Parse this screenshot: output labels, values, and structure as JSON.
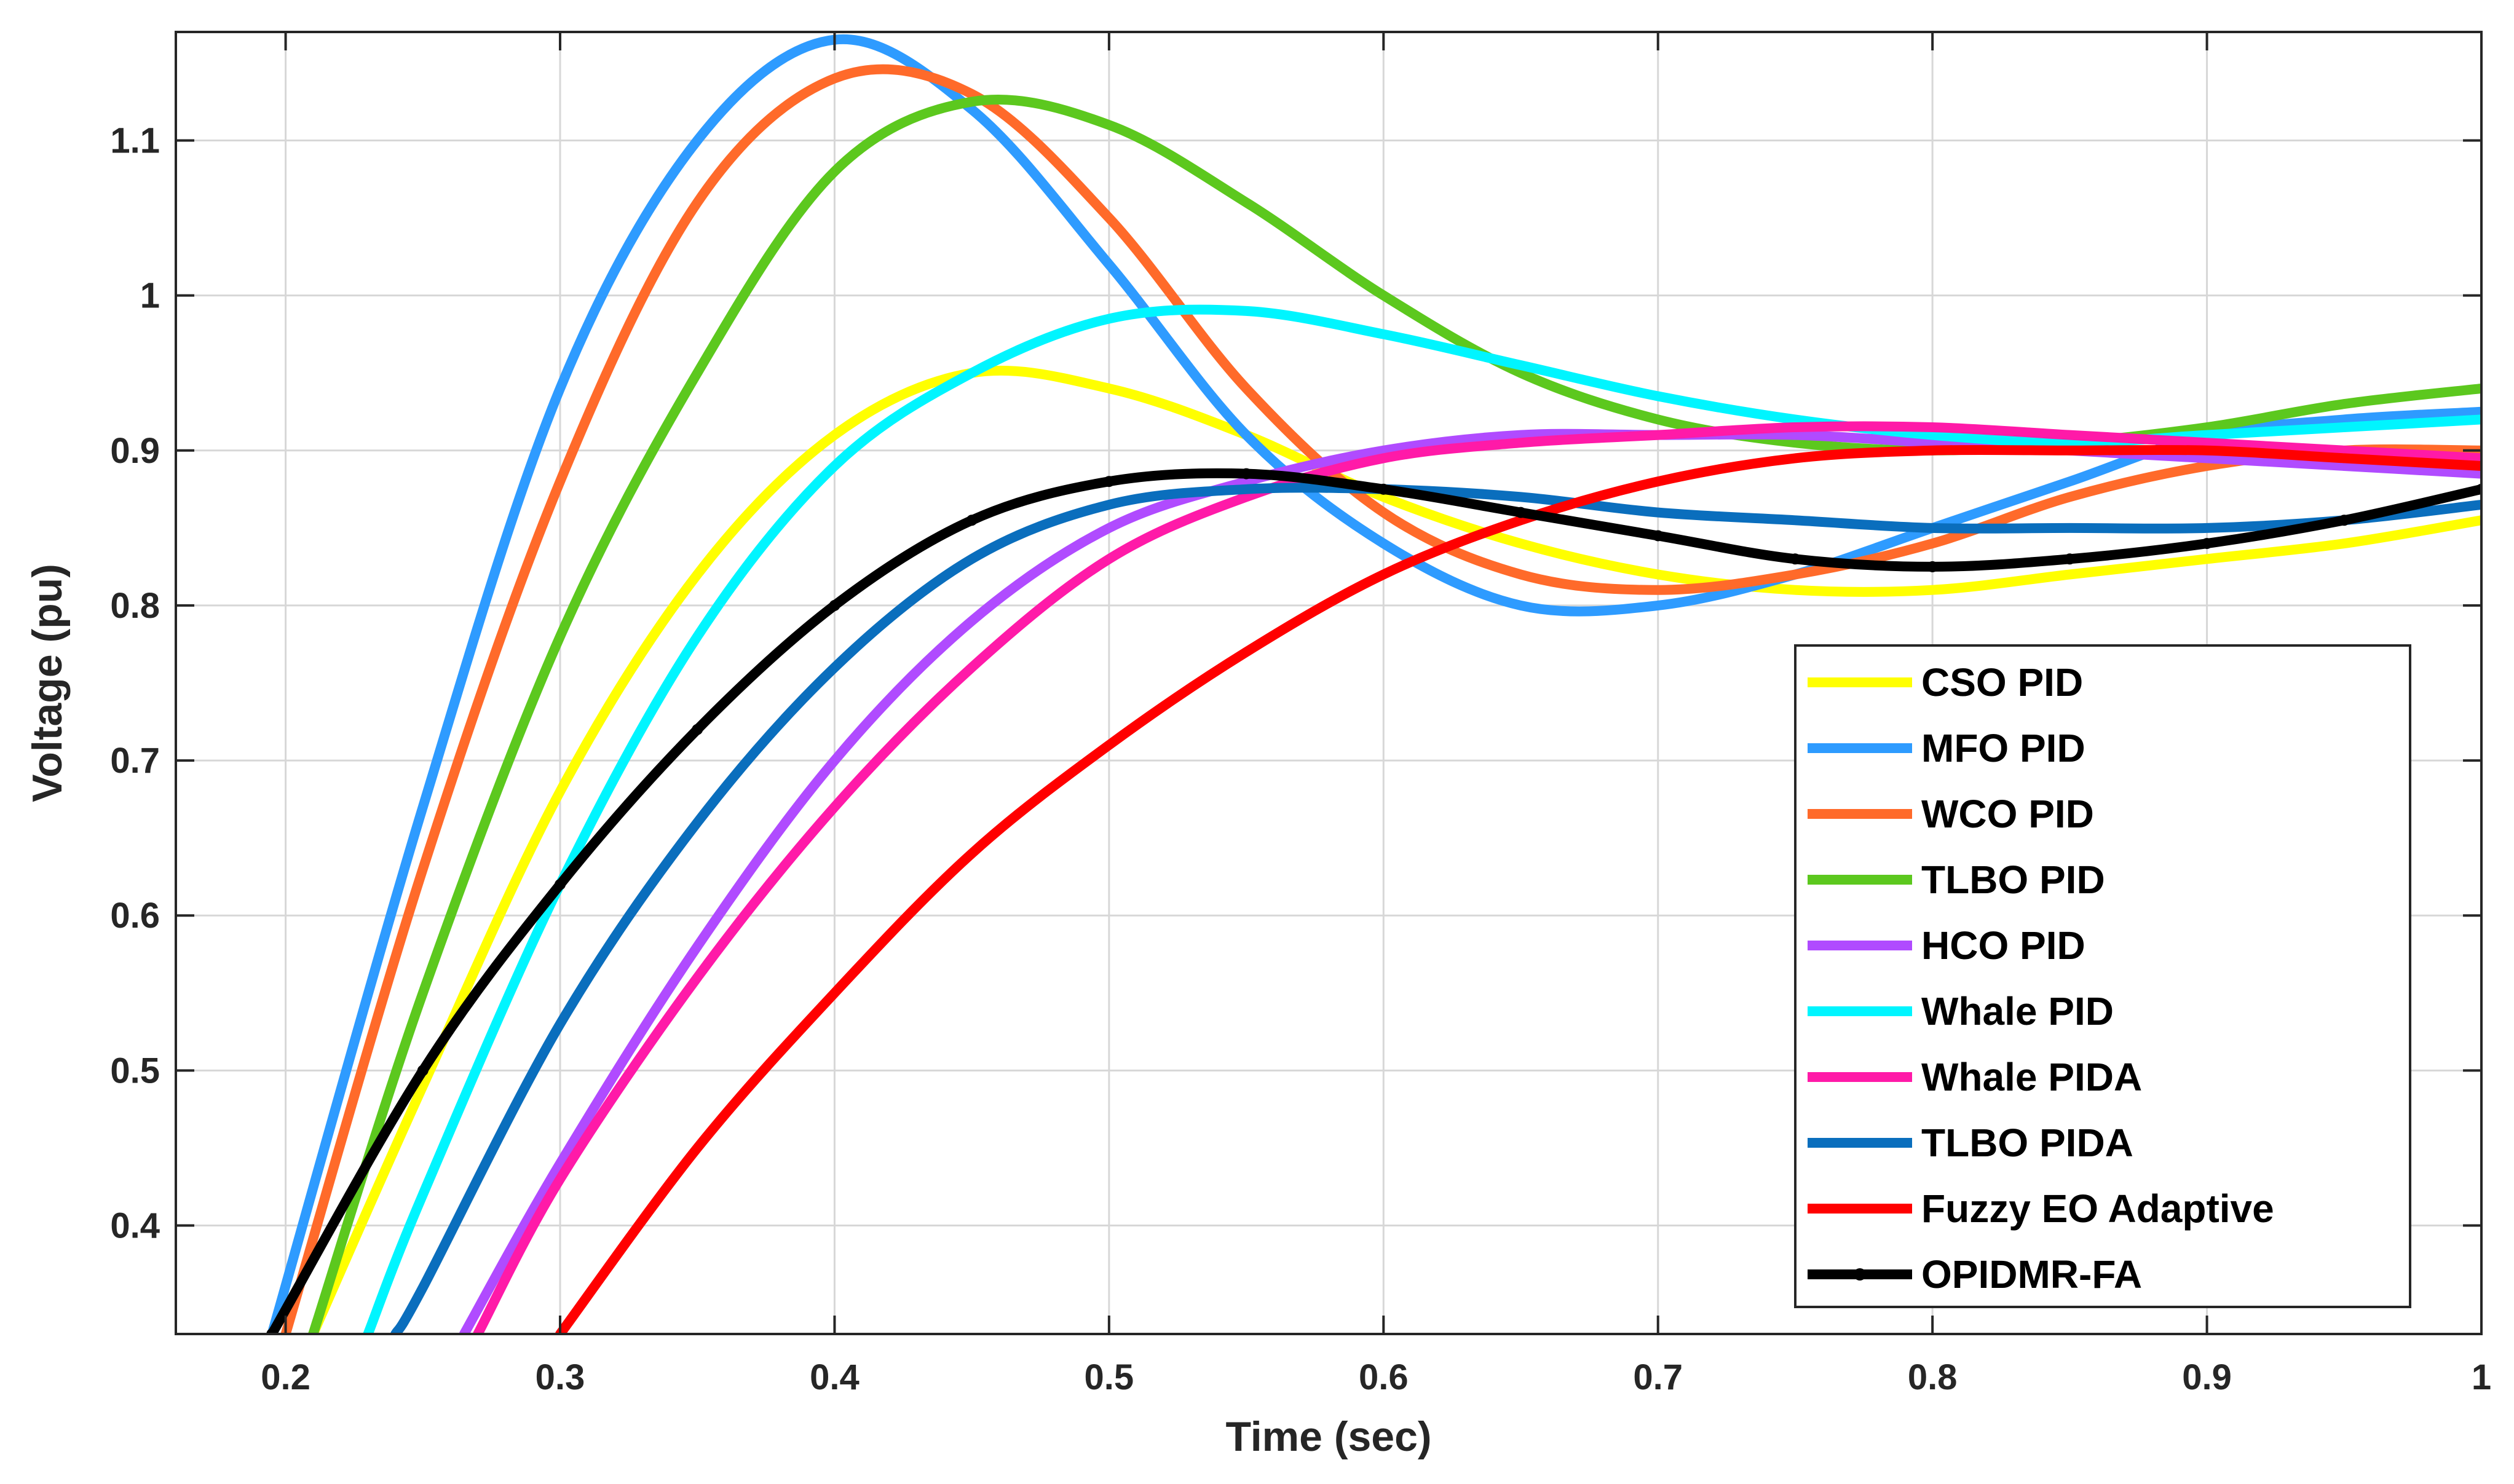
{
  "chart_data": {
    "type": "line",
    "title": "",
    "xlabel": "Time (sec)",
    "ylabel": "Voltage (pu)",
    "xlim": [
      0.16,
      1.0
    ],
    "ylim": [
      0.33,
      1.17
    ],
    "xticks": [
      0.2,
      0.3,
      0.4,
      0.5,
      0.6,
      0.7,
      0.8,
      0.9,
      1.0
    ],
    "xtick_labels": [
      "0.2",
      "0.3",
      "0.4",
      "0.5",
      "0.6",
      "0.7",
      "0.8",
      "0.9",
      "1"
    ],
    "yticks": [
      0.4,
      0.5,
      0.6,
      0.7,
      0.8,
      0.9,
      1.0,
      1.1
    ],
    "ytick_labels": [
      "0.4",
      "0.5",
      "0.6",
      "0.7",
      "0.8",
      "0.9",
      "1",
      "1.1"
    ],
    "grid": true,
    "legend_position": "bottom-right",
    "series": [
      {
        "name": "CSO PID",
        "color": "#ffff00",
        "x": [
          0.21,
          0.25,
          0.3,
          0.35,
          0.4,
          0.45,
          0.5,
          0.55,
          0.6,
          0.65,
          0.7,
          0.75,
          0.8,
          0.85,
          0.9,
          0.95,
          1.0
        ],
        "y": [
          0.33,
          0.49,
          0.68,
          0.82,
          0.91,
          0.95,
          0.94,
          0.91,
          0.87,
          0.84,
          0.82,
          0.81,
          0.81,
          0.82,
          0.83,
          0.84,
          0.855
        ]
      },
      {
        "name": "MFO PID",
        "color": "#2e9bff",
        "x": [
          0.195,
          0.25,
          0.3,
          0.35,
          0.4,
          0.45,
          0.5,
          0.55,
          0.6,
          0.65,
          0.7,
          0.75,
          0.8,
          0.85,
          0.9,
          0.95,
          1.0
        ],
        "y": [
          0.33,
          0.67,
          0.94,
          1.1,
          1.165,
          1.12,
          1.02,
          0.91,
          0.84,
          0.8,
          0.8,
          0.82,
          0.85,
          0.88,
          0.91,
          0.92,
          0.925
        ]
      },
      {
        "name": "WCO PID",
        "color": "#ff6a2a",
        "x": [
          0.2,
          0.25,
          0.3,
          0.35,
          0.4,
          0.45,
          0.5,
          0.55,
          0.6,
          0.65,
          0.7,
          0.75,
          0.8,
          0.85,
          0.9,
          0.95,
          1.0
        ],
        "y": [
          0.33,
          0.63,
          0.88,
          1.06,
          1.14,
          1.13,
          1.05,
          0.94,
          0.86,
          0.82,
          0.81,
          0.82,
          0.84,
          0.87,
          0.89,
          0.9,
          0.9
        ]
      },
      {
        "name": "TLBO PID",
        "color": "#5cc81e",
        "x": [
          0.21,
          0.25,
          0.3,
          0.35,
          0.4,
          0.45,
          0.5,
          0.55,
          0.6,
          0.65,
          0.7,
          0.75,
          0.8,
          0.85,
          0.9,
          0.95,
          1.0
        ],
        "y": [
          0.33,
          0.55,
          0.78,
          0.95,
          1.08,
          1.125,
          1.11,
          1.06,
          1.0,
          0.95,
          0.92,
          0.905,
          0.9,
          0.905,
          0.915,
          0.93,
          0.94
        ]
      },
      {
        "name": "HCO PID",
        "color": "#b04bff",
        "x": [
          0.265,
          0.3,
          0.35,
          0.4,
          0.45,
          0.5,
          0.55,
          0.6,
          0.65,
          0.7,
          0.75,
          0.8,
          0.85,
          0.9,
          0.95,
          1.0
        ],
        "y": [
          0.33,
          0.44,
          0.58,
          0.7,
          0.79,
          0.85,
          0.88,
          0.9,
          0.91,
          0.91,
          0.91,
          0.905,
          0.9,
          0.895,
          0.89,
          0.885
        ]
      },
      {
        "name": "Whale PID",
        "color": "#00f5ff",
        "x": [
          0.23,
          0.25,
          0.3,
          0.35,
          0.4,
          0.45,
          0.5,
          0.55,
          0.6,
          0.65,
          0.7,
          0.75,
          0.8,
          0.85,
          0.9,
          0.95,
          1.0
        ],
        "y": [
          0.33,
          0.42,
          0.62,
          0.78,
          0.89,
          0.95,
          0.985,
          0.99,
          0.975,
          0.955,
          0.935,
          0.92,
          0.91,
          0.905,
          0.91,
          0.915,
          0.92
        ]
      },
      {
        "name": "Whale PIDA",
        "color": "#ff1aa8",
        "x": [
          0.27,
          0.3,
          0.35,
          0.4,
          0.45,
          0.5,
          0.55,
          0.6,
          0.65,
          0.7,
          0.75,
          0.8,
          0.85,
          0.9,
          0.95,
          1.0
        ],
        "y": [
          0.33,
          0.43,
          0.56,
          0.67,
          0.76,
          0.83,
          0.87,
          0.895,
          0.905,
          0.91,
          0.915,
          0.915,
          0.91,
          0.905,
          0.9,
          0.895
        ]
      },
      {
        "name": "TLBO PIDA",
        "color": "#0a6ebd",
        "x": [
          0.24,
          0.25,
          0.3,
          0.35,
          0.4,
          0.45,
          0.5,
          0.55,
          0.6,
          0.65,
          0.7,
          0.75,
          0.8,
          0.85,
          0.9,
          0.95,
          1.0
        ],
        "y": [
          0.33,
          0.36,
          0.53,
          0.66,
          0.76,
          0.83,
          0.865,
          0.875,
          0.875,
          0.87,
          0.86,
          0.855,
          0.85,
          0.85,
          0.85,
          0.855,
          0.865
        ]
      },
      {
        "name": "Fuzzy EO Adaptive",
        "color": "#ff0000",
        "x": [
          0.3,
          0.35,
          0.4,
          0.45,
          0.5,
          0.55,
          0.6,
          0.65,
          0.7,
          0.75,
          0.8,
          0.85,
          0.9,
          0.95,
          1.0
        ],
        "y": [
          0.33,
          0.45,
          0.55,
          0.64,
          0.71,
          0.77,
          0.82,
          0.855,
          0.88,
          0.895,
          0.9,
          0.9,
          0.9,
          0.895,
          0.89
        ]
      },
      {
        "name": "OPIDMR-FA",
        "color": "#000000",
        "x": [
          0.195,
          0.25,
          0.3,
          0.35,
          0.4,
          0.45,
          0.5,
          0.55,
          0.6,
          0.65,
          0.7,
          0.75,
          0.8,
          0.85,
          0.9,
          0.95,
          1.0
        ],
        "y": [
          0.33,
          0.5,
          0.62,
          0.72,
          0.8,
          0.855,
          0.88,
          0.885,
          0.875,
          0.86,
          0.845,
          0.83,
          0.825,
          0.83,
          0.84,
          0.855,
          0.875
        ]
      }
    ]
  }
}
